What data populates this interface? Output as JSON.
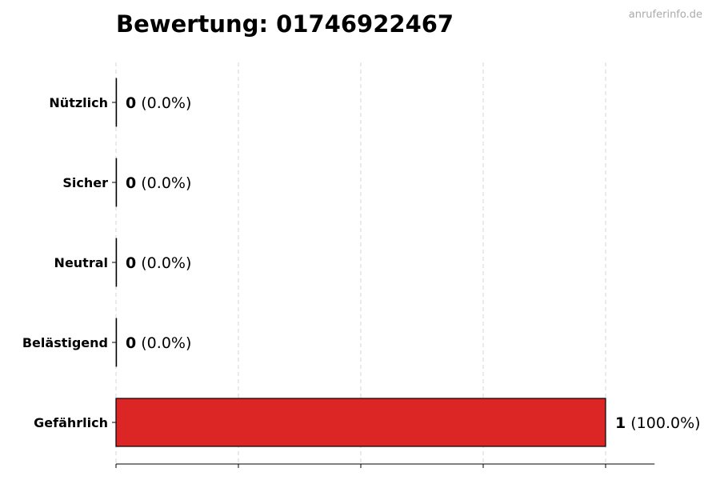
{
  "watermark": "anruferinfo.de",
  "chart_data": {
    "type": "bar",
    "orientation": "horizontal",
    "title": "Bewertung: 01746922467",
    "categories": [
      "Nützlich",
      "Sicher",
      "Neutral",
      "Belästigend",
      "Gefährlich"
    ],
    "values": [
      0,
      0,
      0,
      0,
      1
    ],
    "value_labels": [
      "0",
      "0",
      "0",
      "0",
      "1"
    ],
    "percent_labels": [
      "(0.0%)",
      "(0.0%)",
      "(0.0%)",
      "(0.0%)",
      "(100.0%)"
    ],
    "colors": [
      "#2e9e44",
      "#2e9e44",
      "#999999",
      "#e8842a",
      "#dc2626"
    ],
    "xlim": [
      0,
      1.1
    ],
    "xticks": [
      0,
      0.25,
      0.5,
      0.75,
      1
    ],
    "xlabel": "",
    "ylabel": "",
    "grid": "x-dashed",
    "legend": "none"
  }
}
